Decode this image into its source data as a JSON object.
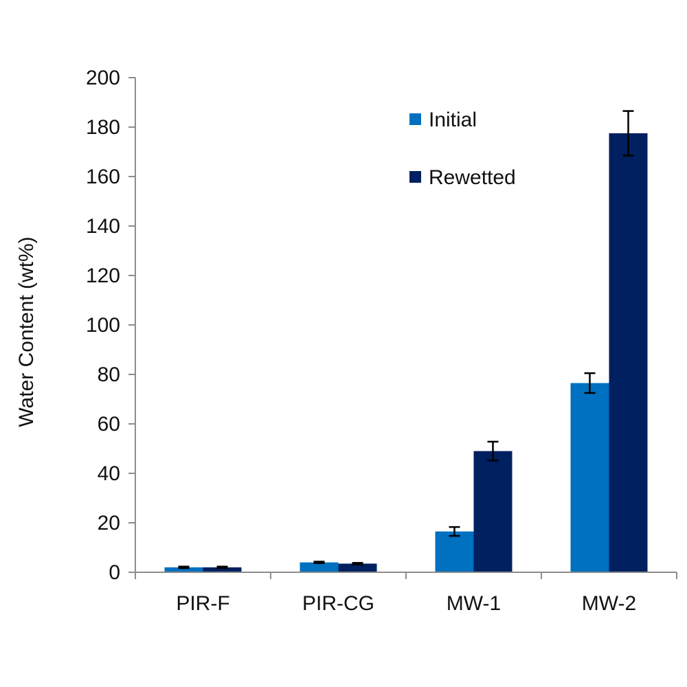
{
  "chart_data": {
    "type": "bar",
    "title": "",
    "xlabel": "",
    "ylabel": "Water Content (wt%)",
    "ylim": [
      0,
      200
    ],
    "yticks": [
      0,
      20,
      40,
      60,
      80,
      100,
      120,
      140,
      160,
      180,
      200
    ],
    "ytick_labels": [
      "0",
      "20",
      "40",
      "60",
      "80",
      "100",
      "120",
      "140",
      "160",
      "180",
      "200"
    ],
    "categories": [
      "PIR-F",
      "PIR-CG",
      "MW-1",
      "MW-2"
    ],
    "grid": false,
    "legend_position": "top-right",
    "series": [
      {
        "name": "Initial",
        "color": "#0070c0",
        "values": [
          2,
          4,
          16.5,
          76.5
        ],
        "errors": [
          0.3,
          0.3,
          1.8,
          4
        ]
      },
      {
        "name": "Rewetted",
        "color": "#002060",
        "values": [
          2,
          3.5,
          49,
          177.5
        ],
        "errors": [
          0.3,
          0.3,
          3.8,
          9
        ]
      }
    ]
  }
}
